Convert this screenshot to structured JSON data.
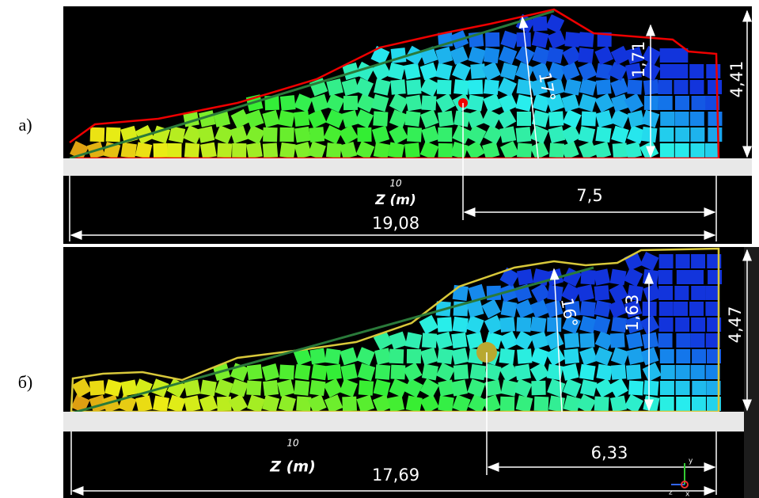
{
  "panels": [
    {
      "label": "а)",
      "axis_tick": "10",
      "axis_label": "Z (m)",
      "height": "4,41",
      "slope_height": "1,71",
      "angle": "17°",
      "front": "7,5",
      "length": "19,08"
    },
    {
      "label": "б)",
      "axis_tick": "10",
      "axis_label": "Z (m)",
      "height": "4,47",
      "slope_height": "1,63",
      "angle": "16°",
      "front": "6,33",
      "length": "17,69",
      "gizmo": [
        "y",
        "z",
        "x"
      ]
    }
  ]
}
